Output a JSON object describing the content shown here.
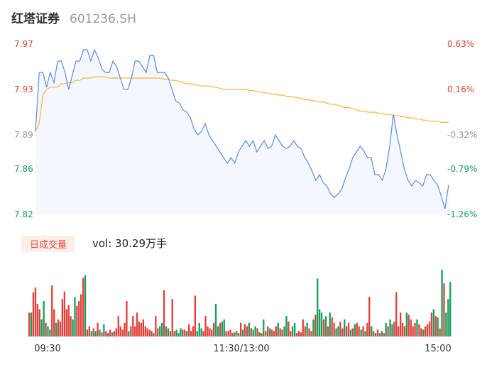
{
  "header": {
    "name": "红塔证券",
    "code": "601236.SH"
  },
  "colors": {
    "up": "#e0403a",
    "down": "#12a05c",
    "neutral": "#9a9a9a",
    "price_line": "#5b8de0",
    "avg_line": "#f0b63a",
    "area_fill": "#f4f7fd"
  },
  "chart_data": {
    "type": "line",
    "price_axis": {
      "ticks": [
        "7.97",
        "7.93",
        "7.89",
        "7.86",
        "7.82"
      ],
      "tick_values": [
        7.97,
        7.93,
        7.89,
        7.86,
        7.82
      ],
      "tick_colors": [
        "#e0403a",
        "#e0403a",
        "#9a9a9a",
        "#12a05c",
        "#12a05c"
      ],
      "ylim": [
        7.82,
        7.97
      ]
    },
    "pct_axis": {
      "ticks": [
        "0.63%",
        "0.16%",
        "-0.32%",
        "-0.79%",
        "-1.26%"
      ],
      "tick_colors": [
        "#e0403a",
        "#e0403a",
        "#9a9a9a",
        "#12a05c",
        "#12a05c"
      ]
    },
    "x_ticks": [
      "09:30",
      "11:30/13:00",
      "15:00"
    ],
    "price": [
      7.893,
      7.945,
      7.945,
      7.932,
      7.945,
      7.936,
      7.955,
      7.955,
      7.945,
      7.93,
      7.943,
      7.955,
      7.955,
      7.965,
      7.965,
      7.955,
      7.965,
      7.958,
      7.948,
      7.945,
      7.945,
      7.955,
      7.95,
      7.94,
      7.93,
      7.93,
      7.94,
      7.955,
      7.955,
      7.95,
      7.945,
      7.96,
      7.96,
      7.945,
      7.945,
      7.945,
      7.94,
      7.93,
      7.92,
      7.918,
      7.912,
      7.91,
      7.905,
      7.895,
      7.89,
      7.893,
      7.9,
      7.89,
      7.885,
      7.88,
      7.875,
      7.87,
      7.865,
      7.87,
      7.865,
      7.875,
      7.88,
      7.885,
      7.88,
      7.885,
      7.875,
      7.88,
      7.885,
      7.878,
      7.88,
      7.89,
      7.885,
      7.88,
      7.878,
      7.88,
      7.885,
      7.88,
      7.878,
      7.87,
      7.865,
      7.858,
      7.85,
      7.855,
      7.848,
      7.845,
      7.838,
      7.835,
      7.838,
      7.842,
      7.852,
      7.86,
      7.87,
      7.875,
      7.88,
      7.876,
      7.87,
      7.87,
      7.855,
      7.855,
      7.85,
      7.86,
      7.88,
      7.908,
      7.89,
      7.875,
      7.86,
      7.85,
      7.845,
      7.85,
      7.848,
      7.845,
      7.855,
      7.855,
      7.85,
      7.846,
      7.836,
      7.825,
      7.846
    ],
    "avg": [
      7.893,
      7.9,
      7.925,
      7.93,
      7.932,
      7.932,
      7.932,
      7.935,
      7.935,
      7.936,
      7.936,
      7.938,
      7.938,
      7.94,
      7.94,
      7.94,
      7.941,
      7.941,
      7.941,
      7.941,
      7.94,
      7.94,
      7.94,
      7.94,
      7.94,
      7.94,
      7.94,
      7.94,
      7.94,
      7.94,
      7.94,
      7.94,
      7.94,
      7.94,
      7.94,
      7.939,
      7.939,
      7.938,
      7.938,
      7.937,
      7.936,
      7.935,
      7.935,
      7.934,
      7.934,
      7.933,
      7.933,
      7.933,
      7.932,
      7.932,
      7.931,
      7.93,
      7.93,
      7.93,
      7.93,
      7.93,
      7.93,
      7.93,
      7.929,
      7.929,
      7.928,
      7.928,
      7.927,
      7.927,
      7.926,
      7.926,
      7.925,
      7.925,
      7.924,
      7.924,
      7.923,
      7.923,
      7.922,
      7.921,
      7.921,
      7.92,
      7.92,
      7.919,
      7.919,
      7.918,
      7.917,
      7.917,
      7.916,
      7.915,
      7.914,
      7.914,
      7.913,
      7.912,
      7.911,
      7.911,
      7.91,
      7.91,
      7.91,
      7.909,
      7.909,
      7.908,
      7.908,
      7.907,
      7.907,
      7.906,
      7.906,
      7.905,
      7.905,
      7.904,
      7.904,
      7.903,
      7.903,
      7.902,
      7.902,
      7.902,
      7.901,
      7.901,
      7.901
    ],
    "volume": {
      "badge": "日成交量",
      "label": "vol: 30.29万手",
      "ymax": 100,
      "bars": [
        {
          "v": 35,
          "d": "up"
        },
        {
          "v": 35,
          "d": "down"
        },
        {
          "v": 65,
          "d": "up"
        },
        {
          "v": 72,
          "d": "up"
        },
        {
          "v": 48,
          "d": "up"
        },
        {
          "v": 40,
          "d": "up"
        },
        {
          "v": 25,
          "d": "down"
        },
        {
          "v": 52,
          "d": "down"
        },
        {
          "v": 20,
          "d": "up"
        },
        {
          "v": 15,
          "d": "down"
        },
        {
          "v": 10,
          "d": "down"
        },
        {
          "v": 75,
          "d": "up"
        },
        {
          "v": 40,
          "d": "up"
        },
        {
          "v": 20,
          "d": "down"
        },
        {
          "v": 25,
          "d": "up"
        },
        {
          "v": 22,
          "d": "up"
        },
        {
          "v": 55,
          "d": "up"
        },
        {
          "v": 66,
          "d": "up"
        },
        {
          "v": 40,
          "d": "up"
        },
        {
          "v": 46,
          "d": "up"
        },
        {
          "v": 30,
          "d": "up"
        },
        {
          "v": 25,
          "d": "down"
        },
        {
          "v": 58,
          "d": "down"
        },
        {
          "v": 45,
          "d": "up"
        },
        {
          "v": 52,
          "d": "up"
        },
        {
          "v": 62,
          "d": "up"
        },
        {
          "v": 86,
          "d": "up"
        },
        {
          "v": 90,
          "d": "down"
        },
        {
          "v": 10,
          "d": "up"
        },
        {
          "v": 15,
          "d": "up"
        },
        {
          "v": 8,
          "d": "down"
        },
        {
          "v": 12,
          "d": "up"
        },
        {
          "v": 8,
          "d": "down"
        },
        {
          "v": 20,
          "d": "up"
        },
        {
          "v": 10,
          "d": "down"
        },
        {
          "v": 6,
          "d": "up"
        },
        {
          "v": 18,
          "d": "down"
        },
        {
          "v": 8,
          "d": "up"
        },
        {
          "v": 5,
          "d": "up"
        },
        {
          "v": 10,
          "d": "up"
        },
        {
          "v": 6,
          "d": "down"
        },
        {
          "v": 8,
          "d": "up"
        },
        {
          "v": 12,
          "d": "up"
        },
        {
          "v": 30,
          "d": "up"
        },
        {
          "v": 15,
          "d": "up"
        },
        {
          "v": 10,
          "d": "up"
        },
        {
          "v": 20,
          "d": "up"
        },
        {
          "v": 52,
          "d": "up"
        },
        {
          "v": 8,
          "d": "down"
        },
        {
          "v": 15,
          "d": "up"
        },
        {
          "v": 30,
          "d": "up"
        },
        {
          "v": 15,
          "d": "up"
        },
        {
          "v": 35,
          "d": "up"
        },
        {
          "v": 22,
          "d": "up"
        },
        {
          "v": 20,
          "d": "up"
        },
        {
          "v": 25,
          "d": "up"
        },
        {
          "v": 15,
          "d": "up"
        },
        {
          "v": 12,
          "d": "up"
        },
        {
          "v": 10,
          "d": "up"
        },
        {
          "v": 8,
          "d": "up"
        },
        {
          "v": 5,
          "d": "down"
        },
        {
          "v": 30,
          "d": "up"
        },
        {
          "v": 12,
          "d": "up"
        },
        {
          "v": 15,
          "d": "down"
        },
        {
          "v": 20,
          "d": "down"
        },
        {
          "v": 68,
          "d": "up"
        },
        {
          "v": 15,
          "d": "down"
        },
        {
          "v": 12,
          "d": "up"
        },
        {
          "v": 8,
          "d": "down"
        },
        {
          "v": 55,
          "d": "up"
        },
        {
          "v": 8,
          "d": "up"
        },
        {
          "v": 10,
          "d": "down"
        },
        {
          "v": 5,
          "d": "down"
        },
        {
          "v": 12,
          "d": "down"
        },
        {
          "v": 10,
          "d": "up"
        },
        {
          "v": 10,
          "d": "up"
        },
        {
          "v": 8,
          "d": "down"
        },
        {
          "v": 18,
          "d": "up"
        },
        {
          "v": 8,
          "d": "up"
        },
        {
          "v": 15,
          "d": "up"
        },
        {
          "v": 60,
          "d": "up"
        },
        {
          "v": 8,
          "d": "down"
        },
        {
          "v": 20,
          "d": "down"
        },
        {
          "v": 12,
          "d": "down"
        },
        {
          "v": 8,
          "d": "up"
        },
        {
          "v": 30,
          "d": "up"
        },
        {
          "v": 15,
          "d": "up"
        },
        {
          "v": 12,
          "d": "up"
        },
        {
          "v": 10,
          "d": "up"
        },
        {
          "v": 20,
          "d": "up"
        },
        {
          "v": 48,
          "d": "down"
        },
        {
          "v": 15,
          "d": "down"
        },
        {
          "v": 20,
          "d": "up"
        },
        {
          "v": 22,
          "d": "down"
        },
        {
          "v": 25,
          "d": "down"
        },
        {
          "v": 8,
          "d": "up"
        },
        {
          "v": 8,
          "d": "up"
        },
        {
          "v": 10,
          "d": "up"
        },
        {
          "v": 5,
          "d": "up"
        },
        {
          "v": 6,
          "d": "down"
        },
        {
          "v": 8,
          "d": "up"
        },
        {
          "v": 5,
          "d": "down"
        },
        {
          "v": 20,
          "d": "up"
        },
        {
          "v": 10,
          "d": "down"
        },
        {
          "v": 18,
          "d": "up"
        },
        {
          "v": 15,
          "d": "up"
        },
        {
          "v": 20,
          "d": "down"
        },
        {
          "v": 12,
          "d": "up"
        },
        {
          "v": 10,
          "d": "down"
        },
        {
          "v": 15,
          "d": "down"
        },
        {
          "v": 12,
          "d": "up"
        },
        {
          "v": 6,
          "d": "down"
        },
        {
          "v": 5,
          "d": "up"
        },
        {
          "v": 25,
          "d": "down"
        },
        {
          "v": 8,
          "d": "up"
        },
        {
          "v": 15,
          "d": "up"
        },
        {
          "v": 12,
          "d": "down"
        },
        {
          "v": 10,
          "d": "up"
        },
        {
          "v": 8,
          "d": "up"
        },
        {
          "v": 15,
          "d": "up"
        },
        {
          "v": 20,
          "d": "down"
        },
        {
          "v": 12,
          "d": "up"
        },
        {
          "v": 10,
          "d": "up"
        },
        {
          "v": 15,
          "d": "down"
        },
        {
          "v": 30,
          "d": "down"
        },
        {
          "v": 22,
          "d": "up"
        },
        {
          "v": 8,
          "d": "up"
        },
        {
          "v": 15,
          "d": "down"
        },
        {
          "v": 20,
          "d": "down"
        },
        {
          "v": 5,
          "d": "up"
        },
        {
          "v": 8,
          "d": "up"
        },
        {
          "v": 6,
          "d": "up"
        },
        {
          "v": 25,
          "d": "up"
        },
        {
          "v": 15,
          "d": "up"
        },
        {
          "v": 20,
          "d": "down"
        },
        {
          "v": 12,
          "d": "up"
        },
        {
          "v": 8,
          "d": "up"
        },
        {
          "v": 25,
          "d": "down"
        },
        {
          "v": 32,
          "d": "up"
        },
        {
          "v": 85,
          "d": "down"
        },
        {
          "v": 40,
          "d": "down"
        },
        {
          "v": 35,
          "d": "down"
        },
        {
          "v": 25,
          "d": "up"
        },
        {
          "v": 30,
          "d": "down"
        },
        {
          "v": 15,
          "d": "up"
        },
        {
          "v": 35,
          "d": "down"
        },
        {
          "v": 28,
          "d": "up"
        },
        {
          "v": 20,
          "d": "up"
        },
        {
          "v": 12,
          "d": "down"
        },
        {
          "v": 15,
          "d": "down"
        },
        {
          "v": 22,
          "d": "up"
        },
        {
          "v": 12,
          "d": "up"
        },
        {
          "v": 25,
          "d": "down"
        },
        {
          "v": 15,
          "d": "up"
        },
        {
          "v": 20,
          "d": "up"
        },
        {
          "v": 10,
          "d": "down"
        },
        {
          "v": 12,
          "d": "up"
        },
        {
          "v": 18,
          "d": "down"
        },
        {
          "v": 20,
          "d": "up"
        },
        {
          "v": 15,
          "d": "up"
        },
        {
          "v": 10,
          "d": "down"
        },
        {
          "v": 15,
          "d": "up"
        },
        {
          "v": 8,
          "d": "down"
        },
        {
          "v": 20,
          "d": "up"
        },
        {
          "v": 58,
          "d": "up"
        },
        {
          "v": 15,
          "d": "down"
        },
        {
          "v": 8,
          "d": "up"
        },
        {
          "v": 5,
          "d": "down"
        },
        {
          "v": 10,
          "d": "up"
        },
        {
          "v": 5,
          "d": "up"
        },
        {
          "v": 8,
          "d": "down"
        },
        {
          "v": 5,
          "d": "up"
        },
        {
          "v": 20,
          "d": "down"
        },
        {
          "v": 15,
          "d": "up"
        },
        {
          "v": 25,
          "d": "down"
        },
        {
          "v": 18,
          "d": "down"
        },
        {
          "v": 22,
          "d": "up"
        },
        {
          "v": 65,
          "d": "up"
        },
        {
          "v": 15,
          "d": "up"
        },
        {
          "v": 35,
          "d": "up"
        },
        {
          "v": 20,
          "d": "up"
        },
        {
          "v": 15,
          "d": "up"
        },
        {
          "v": 35,
          "d": "down"
        },
        {
          "v": 32,
          "d": "up"
        },
        {
          "v": 25,
          "d": "up"
        },
        {
          "v": 15,
          "d": "up"
        },
        {
          "v": 20,
          "d": "up"
        },
        {
          "v": 25,
          "d": "down"
        },
        {
          "v": 18,
          "d": "up"
        },
        {
          "v": 12,
          "d": "up"
        },
        {
          "v": 10,
          "d": "down"
        },
        {
          "v": 15,
          "d": "up"
        },
        {
          "v": 18,
          "d": "up"
        },
        {
          "v": 22,
          "d": "up"
        },
        {
          "v": 35,
          "d": "up"
        },
        {
          "v": 40,
          "d": "down"
        },
        {
          "v": 30,
          "d": "up"
        },
        {
          "v": 28,
          "d": "down"
        },
        {
          "v": 12,
          "d": "up"
        },
        {
          "v": 98,
          "d": "down"
        },
        {
          "v": 78,
          "d": "up"
        },
        {
          "v": 35,
          "d": "down"
        },
        {
          "v": 55,
          "d": "down"
        },
        {
          "v": 80,
          "d": "down"
        }
      ]
    }
  }
}
